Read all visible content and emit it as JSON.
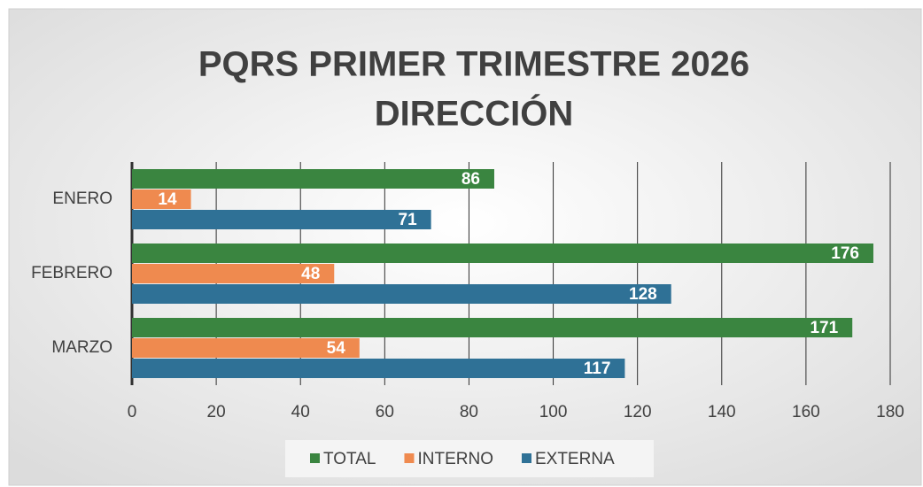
{
  "chart_data": {
    "type": "bar",
    "orientation": "horizontal",
    "title": [
      "PQRS PRIMER TRIMESTRE 2026",
      "DIRECCIÓN"
    ],
    "categories": [
      "ENERO",
      "FEBRERO",
      "MARZO"
    ],
    "series": [
      {
        "name": "TOTAL",
        "color": "#3a8540",
        "values": [
          86,
          176,
          171
        ]
      },
      {
        "name": "INTERNO",
        "color": "#ef8a4f",
        "values": [
          14,
          48,
          54
        ]
      },
      {
        "name": "EXTERNA",
        "color": "#2f7196",
        "values": [
          71,
          128,
          117
        ]
      }
    ],
    "xlim": [
      0,
      180
    ],
    "xticks": [
      0,
      20,
      40,
      60,
      80,
      100,
      120,
      140,
      160,
      180
    ],
    "grid": true,
    "legend": "bottom"
  }
}
